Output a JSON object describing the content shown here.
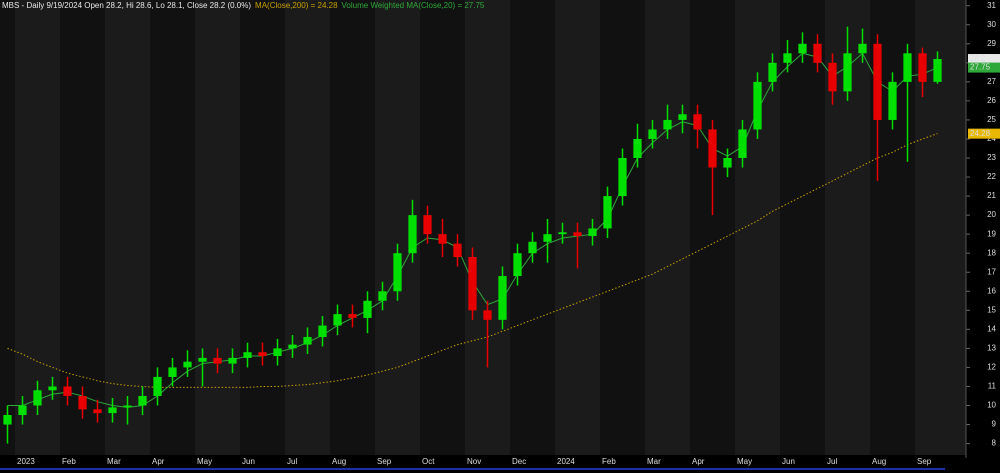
{
  "chart_data": {
    "type": "candlestick",
    "title": "MBS - Daily 9/19/2024 Open 28.2, Hi 28.6, Lo 28.1, Close 28.2 (0.0%)",
    "categories": [
      null,
      "2023",
      null,
      null,
      "Feb",
      null,
      null,
      "Mar",
      null,
      null,
      "Apr",
      null,
      null,
      "May",
      null,
      null,
      "Jun",
      null,
      null,
      "Jul",
      null,
      null,
      "Aug",
      null,
      null,
      "Sep",
      null,
      null,
      "Oct",
      null,
      null,
      "Nov",
      null,
      null,
      "Dec",
      null,
      null,
      "2024",
      null,
      null,
      "Feb",
      null,
      null,
      "Mar",
      null,
      null,
      "Apr",
      null,
      null,
      "May",
      null,
      null,
      "Jun",
      null,
      null,
      "Jul",
      null,
      null,
      "Aug",
      null,
      null,
      "Sep",
      null
    ],
    "open": [
      9,
      9.5,
      10,
      10.8,
      11,
      10.5,
      9.8,
      9.6,
      9.9,
      10,
      10.5,
      11.5,
      12,
      12.3,
      12.5,
      12.2,
      12.5,
      12.8,
      12.6,
      13,
      13.2,
      13.6,
      14.2,
      14.8,
      14.6,
      15.5,
      16,
      18,
      20,
      19,
      18.5,
      17.8,
      15,
      14.5,
      16.8,
      18,
      18.6,
      19,
      19.1,
      18.9,
      19.3,
      21,
      23,
      24,
      24.5,
      25,
      25.3,
      24.5,
      22.5,
      23,
      24.5,
      27,
      28,
      28.5,
      29,
      28,
      26.5,
      28.5,
      29,
      25,
      27,
      28.5,
      27
    ],
    "high": [
      10,
      10.5,
      11.3,
      11.5,
      11.5,
      11,
      10.3,
      10.4,
      10.5,
      11,
      12,
      12.5,
      12.9,
      13,
      13,
      13,
      13.3,
      13.3,
      13.5,
      13.7,
      14.1,
      14.7,
      15.3,
      15.3,
      16,
      16.5,
      18.5,
      20.8,
      20.5,
      19.8,
      19,
      18.3,
      15.5,
      17.3,
      18.5,
      19.1,
      19.8,
      19.6,
      19.6,
      19.8,
      21.5,
      23.5,
      24.8,
      25,
      25.8,
      25.8,
      25.8,
      25,
      23.5,
      25,
      27.5,
      28.5,
      29.2,
      29.6,
      29.5,
      28.5,
      29.9,
      29.8,
      29.5,
      27.5,
      29,
      28.8,
      28.6
    ],
    "low": [
      8,
      9,
      9.5,
      10.3,
      10,
      9.3,
      9.1,
      9.1,
      9,
      9.5,
      10,
      11,
      11.5,
      11,
      11.7,
      11.7,
      12,
      12.1,
      12.1,
      12.5,
      12.7,
      13.1,
      13.7,
      14.1,
      13.8,
      15,
      15.5,
      17.5,
      18.5,
      17.8,
      17.3,
      14.5,
      12,
      14,
      16.3,
      17.5,
      17.5,
      18.5,
      17.2,
      18.4,
      18.8,
      20.5,
      22.5,
      23.5,
      24,
      24.3,
      23.5,
      20,
      22,
      22.5,
      24,
      26.5,
      27.5,
      28,
      27.5,
      25.8,
      26,
      28,
      21.8,
      24.5,
      22.8,
      26.2,
      26.9
    ],
    "close": [
      9.5,
      10,
      10.8,
      11,
      10.5,
      9.8,
      9.6,
      9.9,
      10,
      10.5,
      11.5,
      12,
      12.3,
      12.5,
      12.2,
      12.5,
      12.8,
      12.6,
      13,
      13.2,
      13.6,
      14.2,
      14.8,
      14.6,
      15.5,
      16,
      18,
      20,
      19,
      18.5,
      17.8,
      15,
      14.5,
      16.8,
      18,
      18.6,
      19,
      19.1,
      18.9,
      19.3,
      21,
      23,
      24,
      24.5,
      25,
      25.3,
      24.5,
      22.5,
      23,
      24.5,
      27,
      28,
      28.5,
      29,
      28,
      26.5,
      28.5,
      29,
      25,
      27,
      28.5,
      27,
      28.2
    ],
    "up_color": "#00e000",
    "down_color": "#e80000",
    "lines": [
      {
        "name": "MA(Close,200) = 24.28",
        "color": "#c8a000",
        "style": "dotted",
        "values": [
          13,
          12.7,
          12.3,
          12,
          11.7,
          11.5,
          11.3,
          11.15,
          11.05,
          11,
          10.95,
          10.95,
          10.95,
          10.95,
          10.95,
          10.95,
          10.95,
          11,
          11,
          11.05,
          11.1,
          11.2,
          11.3,
          11.45,
          11.6,
          11.8,
          12,
          12.3,
          12.6,
          12.9,
          13.2,
          13.4,
          13.6,
          13.9,
          14.2,
          14.5,
          14.8,
          15.1,
          15.4,
          15.7,
          16,
          16.3,
          16.6,
          16.9,
          17.3,
          17.7,
          18.1,
          18.5,
          18.9,
          19.3,
          19.7,
          20.2,
          20.6,
          21,
          21.4,
          21.8,
          22.2,
          22.6,
          23,
          23.3,
          23.7,
          24,
          24.28
        ]
      },
      {
        "name": "Volume Weighted MA(Close,20) = 27.75",
        "color": "#2fa83a",
        "style": "solid",
        "values": [
          10,
          10,
          10.3,
          10.6,
          10.7,
          10.5,
          10.2,
          10,
          9.9,
          10,
          10.5,
          11.2,
          11.8,
          12.2,
          12.3,
          12.4,
          12.6,
          12.6,
          12.8,
          13,
          13.3,
          13.7,
          14.2,
          14.6,
          15,
          15.5,
          16.8,
          18.3,
          18.8,
          18.7,
          18.3,
          16.5,
          15.3,
          15.6,
          16.9,
          18,
          18.5,
          18.8,
          18.9,
          19,
          19.8,
          21.5,
          23,
          23.8,
          24.5,
          24.9,
          24.7,
          23.5,
          23.1,
          23.6,
          25.5,
          27,
          27.8,
          28.5,
          28.3,
          27.3,
          27.8,
          28.5,
          27,
          26.5,
          27.3,
          27.4,
          27.75
        ]
      }
    ],
    "price_tags": [
      {
        "label": "28.2",
        "value": 28.2,
        "color": "#e8e8e8"
      },
      {
        "label": "27.75",
        "value": 27.75,
        "color": "#2fa83a"
      },
      {
        "label": "24.28",
        "value": 24.28,
        "color": "#e8b800"
      }
    ],
    "ylim": [
      7.4,
      31.3
    ],
    "yticks": [
      8,
      9,
      10,
      11,
      12,
      13,
      14,
      15,
      16,
      17,
      18,
      19,
      20,
      21,
      22,
      23,
      24,
      25,
      26,
      27,
      28,
      29,
      30,
      31
    ]
  }
}
